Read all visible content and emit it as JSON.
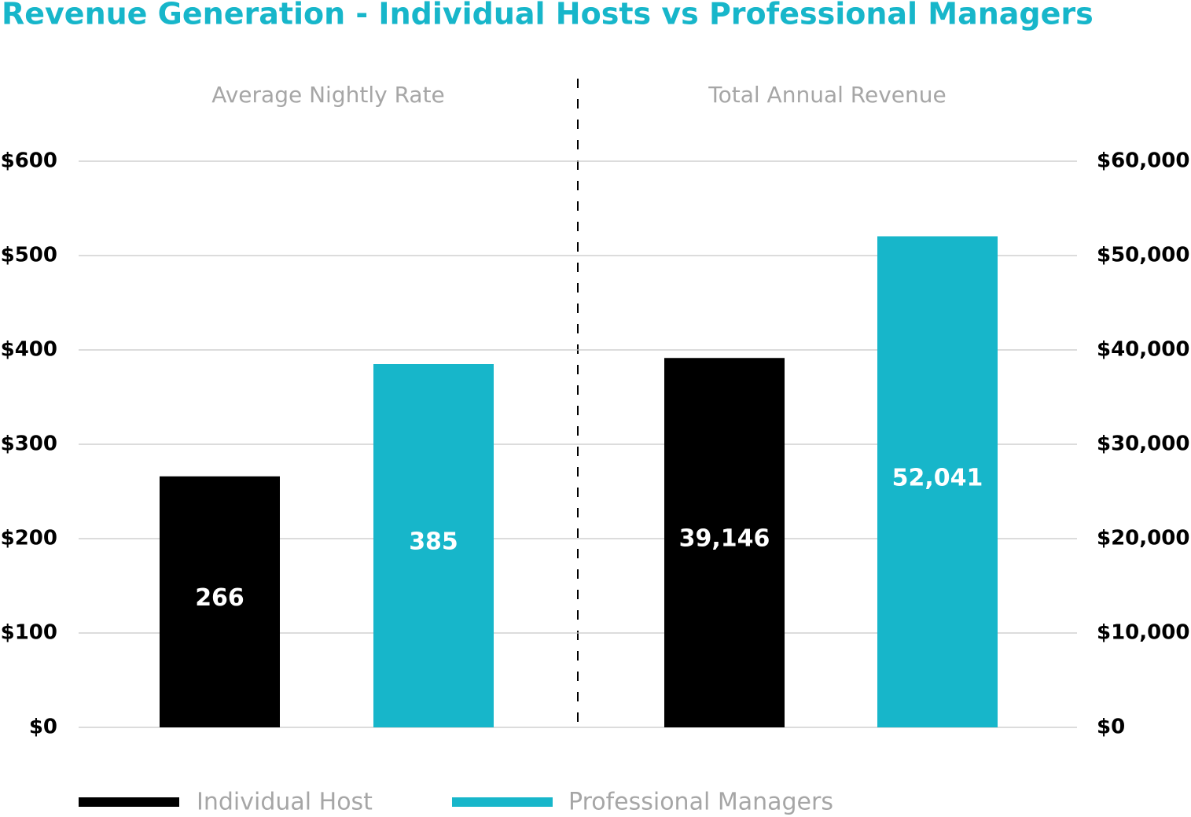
{
  "title": "Revenue Generation - Individual Hosts vs Professional Managers",
  "chart_data": [
    {
      "type": "bar",
      "categories": [
        "Average Nightly Rate"
      ],
      "series": [
        {
          "name": "Individual Host",
          "color": "#000000",
          "values": [
            266
          ]
        },
        {
          "name": "Professional Managers",
          "color": "#17b6ca",
          "values": [
            385
          ]
        }
      ],
      "ylim": [
        0,
        600
      ],
      "yticks": [
        {
          "value": 0,
          "label": "$0"
        },
        {
          "value": 100,
          "label": "$100"
        },
        {
          "value": 200,
          "label": "$200"
        },
        {
          "value": 300,
          "label": "$300"
        },
        {
          "value": 400,
          "label": "$400"
        },
        {
          "value": 500,
          "label": "$500"
        },
        {
          "value": 600,
          "label": "$600"
        }
      ],
      "grid": true
    },
    {
      "type": "bar",
      "categories": [
        "Total Annual Revenue"
      ],
      "series": [
        {
          "color": "#000000",
          "values": [
            39146
          ],
          "value_labels": [
            "39,146"
          ]
        },
        {
          "color": "#17b6ca",
          "values": [
            52041
          ],
          "value_labels": [
            "52,041"
          ]
        }
      ],
      "ylim": [
        0,
        60000
      ],
      "yticks": [
        {
          "value": 0,
          "label": "$0"
        },
        {
          "value": 10000,
          "label": "$10,000"
        },
        {
          "value": 20000,
          "label": "$20,000"
        },
        {
          "value": 30000,
          "label": "$30,000"
        },
        {
          "value": 40000,
          "label": "$40,000"
        },
        {
          "value": 50000,
          "label": "$50,000"
        },
        {
          "value": 60000,
          "label": "$60,000"
        }
      ],
      "grid": true
    }
  ]
}
